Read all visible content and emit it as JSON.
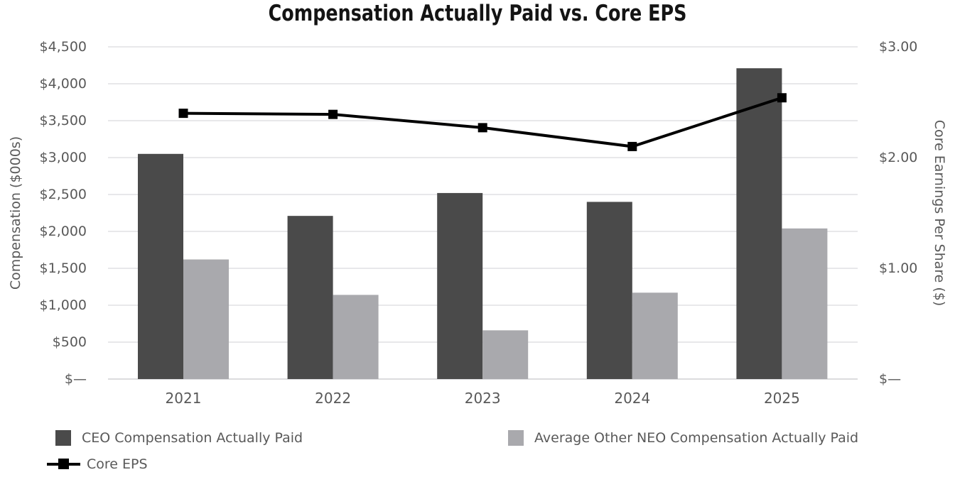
{
  "chart_data": {
    "type": "bar",
    "title": "Compensation Actually Paid vs. Core EPS",
    "categories": [
      "2021",
      "2022",
      "2023",
      "2024",
      "2025"
    ],
    "series": [
      {
        "id": "ceo",
        "name": "CEO Compensation Actually Paid",
        "type": "bar",
        "axis": "left",
        "color": "#4a4a4a",
        "values": [
          3050,
          2210,
          2520,
          2400,
          4210
        ]
      },
      {
        "id": "neo",
        "name": "Average Other NEO Compensation Actually Paid",
        "type": "bar",
        "axis": "left",
        "color": "#a9a9ad",
        "values": [
          1620,
          1140,
          660,
          1170,
          2040
        ]
      },
      {
        "id": "core-eps",
        "name": "Core EPS",
        "type": "line",
        "axis": "right",
        "color": "#000000",
        "marker": "square",
        "values": [
          2.4,
          2.39,
          2.27,
          2.1,
          2.54
        ]
      }
    ],
    "left_axis": {
      "label": "Compensation ($000s)",
      "min": 0,
      "max": 4500,
      "step": 500,
      "tick_labels": [
        "$—",
        "$500",
        "$1,000",
        "$1,500",
        "$2,000",
        "$2,500",
        "$3,000",
        "$3,500",
        "$4,000",
        "$4,500"
      ]
    },
    "right_axis": {
      "label": "Core Earnings Per Share ($)",
      "min": 0,
      "max": 3,
      "step": 1,
      "tick_labels": [
        "$—",
        "$1.00",
        "$2.00",
        "$3.00"
      ]
    },
    "grid": true,
    "legend_position": "bottom-left",
    "colors": {
      "grid": "#e8e8ea",
      "baseline": "#dcdcde",
      "tick_text": "#595959",
      "title_text": "#141414"
    }
  }
}
